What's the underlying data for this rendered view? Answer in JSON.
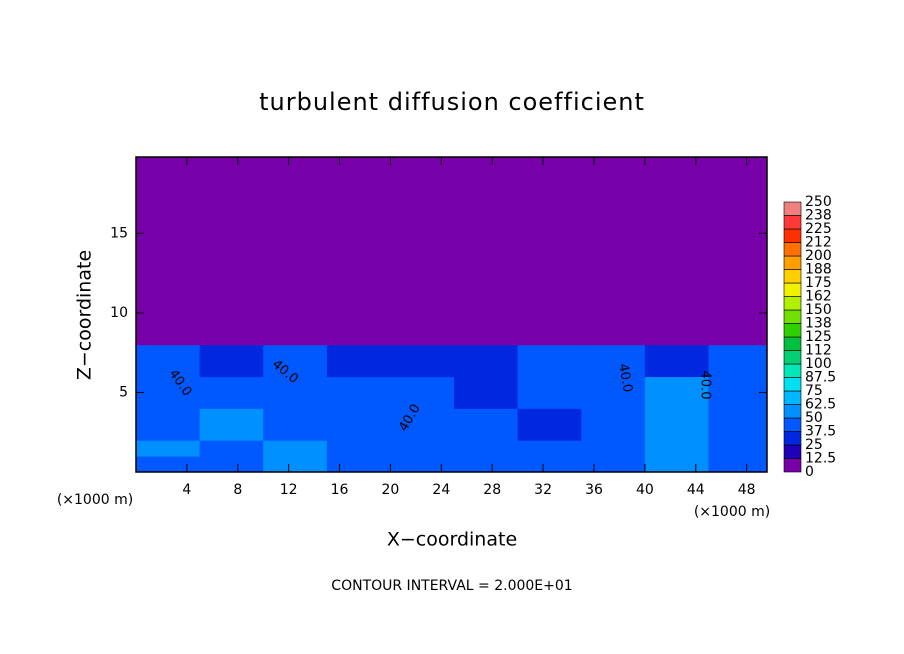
{
  "chart_data": {
    "type": "heatmap",
    "title": "turbulent diffusion coefficient",
    "x_label": "X−coordinate",
    "y_label": "Z−coordinate",
    "x_unit": "(×1000 m)",
    "y_unit": "(×1000 m)",
    "note": "CONTOUR INTERVAL = 2.000E+01",
    "contour_labels": [
      "40.0",
      "40.0",
      "40.0",
      "40.0",
      "40.0"
    ],
    "xlim": [
      0,
      49.6
    ],
    "ylim": [
      0,
      19.8
    ],
    "xticks": [
      4,
      8,
      12,
      16,
      20,
      24,
      28,
      32,
      36,
      40,
      44,
      48
    ],
    "yticks": [
      5,
      10,
      15
    ],
    "x_edges": [
      0,
      5,
      10,
      15,
      20,
      25,
      30,
      35,
      40,
      45,
      49.6
    ],
    "z_edges": [
      0,
      1,
      2,
      4,
      6,
      8,
      19.8
    ],
    "z": [
      [
        45,
        40,
        55,
        45,
        40,
        45,
        40,
        40,
        60,
        40
      ],
      [
        50,
        45,
        50,
        40,
        45,
        40,
        45,
        40,
        55,
        40
      ],
      [
        40,
        50,
        45,
        40,
        45,
        40,
        35,
        45,
        55,
        45
      ],
      [
        45,
        40,
        45,
        40,
        40,
        35,
        40,
        45,
        50,
        40
      ],
      [
        40,
        35,
        40,
        30,
        25,
        25,
        40,
        40,
        35,
        40
      ],
      [
        0,
        0,
        0,
        0,
        0,
        0,
        0,
        0,
        0,
        0
      ]
    ],
    "colorbar": {
      "levels": [
        0,
        12.5,
        25,
        37.5,
        50,
        62.5,
        75,
        87.5,
        100,
        {
          "value": 112.5,
          "label": "112"
        },
        125,
        {
          "value": 137.5,
          "label": "138"
        },
        150,
        {
          "value": 162.5,
          "label": "162"
        },
        175,
        {
          "value": 187.5,
          "label": "188"
        },
        200,
        {
          "value": 212.5,
          "label": "212"
        },
        225,
        {
          "value": 237.5,
          "label": "238"
        },
        250
      ],
      "colors": [
        "#7800a8",
        "#2000b8",
        "#0028e0",
        "#0058ff",
        "#0090ff",
        "#00b8ff",
        "#00e0f0",
        "#00e8b8",
        "#00d070",
        "#00c040",
        "#30d000",
        "#70e000",
        "#b0f000",
        "#f0f000",
        "#ffd000",
        "#ffa000",
        "#ff7000",
        "#ff3000",
        "#ff3838",
        "#f08080"
      ]
    }
  }
}
